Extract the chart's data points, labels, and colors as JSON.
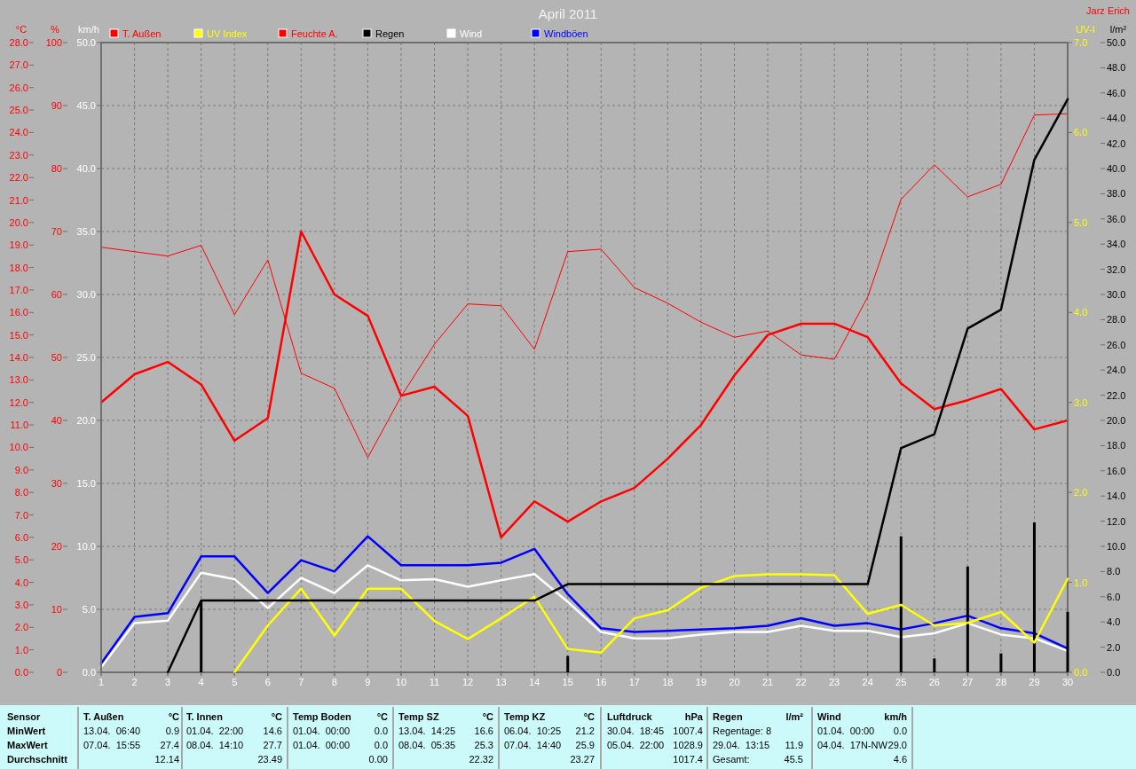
{
  "chart_data": [
    {
      "type": "line",
      "title": "April 2011",
      "x": [
        1,
        2,
        3,
        4,
        5,
        6,
        7,
        8,
        9,
        10,
        11,
        12,
        13,
        14,
        15,
        16,
        17,
        18,
        19,
        20,
        21,
        22,
        23,
        24,
        25,
        26,
        27,
        28,
        29,
        30
      ],
      "xlim": [
        1,
        30
      ],
      "xticks": [
        1,
        2,
        3,
        4,
        5,
        6,
        7,
        8,
        9,
        10,
        11,
        12,
        13,
        14,
        15,
        16,
        17,
        18,
        19,
        20,
        21,
        22,
        23,
        24,
        25,
        26,
        27,
        28,
        29,
        30
      ],
      "ylabel": "°C",
      "ylim": [
        0,
        28
      ],
      "yticks": [
        {
          "value": 0,
          "label": "0.0"
        },
        {
          "value": 1,
          "label": "1.0"
        },
        {
          "value": 2,
          "label": "2.0"
        },
        {
          "value": 3,
          "label": "3.0"
        },
        {
          "value": 4,
          "label": "4.0"
        },
        {
          "value": 5,
          "label": "5.0"
        },
        {
          "value": 6,
          "label": "6.0"
        },
        {
          "value": 7,
          "label": "7.0"
        },
        {
          "value": 8,
          "label": "8.0"
        },
        {
          "value": 9,
          "label": "9.0"
        },
        {
          "value": 10,
          "label": "10.0"
        },
        {
          "value": 11,
          "label": "11.0"
        },
        {
          "value": 12,
          "label": "12.0"
        },
        {
          "value": 13,
          "label": "13.0"
        },
        {
          "value": 14,
          "label": "14.0"
        },
        {
          "value": 15,
          "label": "15.0"
        },
        {
          "value": 16,
          "label": "16.0"
        },
        {
          "value": 17,
          "label": "17.0"
        },
        {
          "value": 18,
          "label": "18.0"
        },
        {
          "value": 19,
          "label": "19.0"
        },
        {
          "value": 20,
          "label": "20.0"
        },
        {
          "value": 21,
          "label": "21.0"
        },
        {
          "value": 22,
          "label": "22.0"
        },
        {
          "value": 23,
          "label": "23.0"
        },
        {
          "value": 24,
          "label": "24.0"
        },
        {
          "value": 25,
          "label": "25.0"
        },
        {
          "value": 26,
          "label": "26.0"
        },
        {
          "value": 27,
          "label": "27.0"
        },
        {
          "value": 28,
          "label": "28.0"
        }
      ],
      "y2label": "%",
      "y2lim": [
        0,
        100
      ],
      "y2ticks": [
        0,
        10,
        20,
        30,
        40,
        50,
        60,
        70,
        80,
        90,
        100
      ],
      "y3label": "km/h",
      "y3lim": [
        0,
        50
      ],
      "y3ticks": [
        {
          "value": 0,
          "label": "0.0"
        },
        {
          "value": 5,
          "label": "5.0"
        },
        {
          "value": 10,
          "label": "10.0"
        },
        {
          "value": 15,
          "label": "15.0"
        },
        {
          "value": 20,
          "label": "20.0"
        },
        {
          "value": 25,
          "label": "25.0"
        },
        {
          "value": 30,
          "label": "30.0"
        },
        {
          "value": 35,
          "label": "35.0"
        },
        {
          "value": 40,
          "label": "40.0"
        },
        {
          "value": 45,
          "label": "45.0"
        },
        {
          "value": 50,
          "label": "50.0"
        }
      ],
      "grid": true,
      "legend": "top",
      "marker": "none",
      "line_style": "solid",
      "series": [
        {
          "name": "T. Außen",
          "color": "#ff0000",
          "values": [
            12.0,
            13.25,
            13.8,
            12.8,
            10.3,
            11.3,
            19.6,
            16.8,
            15.85,
            12.3,
            12.7,
            11.4,
            6.0,
            7.6,
            6.7,
            7.6,
            8.2,
            9.5,
            11.0,
            13.2,
            15.0,
            15.5,
            15.5,
            14.9,
            12.85,
            11.7,
            12.1,
            12.6,
            10.8,
            11.2
          ]
        },
        {
          "name": "Feuchte A.",
          "color": "#ff0000",
          "axis": "y2",
          "values": [
            67.5,
            66.8,
            66.1,
            67.8,
            56.8,
            65.5,
            47.5,
            45.1,
            34.1,
            43.8,
            52.1,
            58.5,
            58.2,
            51.3,
            66.8,
            67.2,
            61.1,
            58.6,
            55.6,
            53.2,
            54.2,
            50.4,
            49.7,
            59.6,
            75.1,
            80.6,
            75.5,
            77.5,
            88.5,
            88.7
          ]
        },
        {
          "name": "Wind",
          "color": "#ffffff",
          "axis": "y3",
          "values": [
            0.4,
            3.9,
            4.1,
            7.9,
            7.4,
            5.1,
            7.5,
            6.3,
            8.5,
            7.3,
            7.4,
            6.8,
            7.3,
            7.8,
            5.6,
            3.2,
            2.7,
            2.7,
            3.0,
            3.2,
            3.2,
            3.7,
            3.3,
            3.3,
            2.8,
            3.1,
            3.9,
            3.0,
            2.7,
            1.7
          ]
        },
        {
          "name": "Windböen",
          "color": "#0000ff",
          "axis": "y3",
          "values": [
            0.7,
            4.4,
            4.7,
            9.2,
            9.2,
            6.3,
            8.9,
            8.0,
            10.8,
            8.5,
            8.5,
            8.5,
            8.7,
            9.8,
            6.2,
            3.5,
            3.2,
            3.3,
            3.4,
            3.5,
            3.7,
            4.3,
            3.7,
            3.9,
            3.4,
            3.9,
            4.5,
            3.5,
            3.1,
            1.9
          ]
        }
      ],
      "annotations": [
        "Jarz Erich",
        "Sensor",
        "MinWert",
        "MaxWert",
        "Durchschnitt",
        "T. Außen",
        "°C",
        "13.04.  06:40",
        "0.9",
        "07.04.  15:55",
        "27.4",
        "12.14",
        "T. Innen",
        "°C",
        "01.04.  22:00",
        "14.6",
        "08.04.  14:10",
        "27.7",
        "23.49",
        "Temp Boden",
        "°C",
        "01.04.  00:00",
        "0.0",
        "01.04.  00:00",
        "0.0",
        "0.00",
        "Temp SZ",
        "°C",
        "13.04.  14:25",
        "16.6",
        "08.04.  05:35",
        "25.3",
        "22.32",
        "Temp KZ",
        "°C",
        "06.04.  10:25",
        "21.2",
        "07.04.  14:40",
        "25.9",
        "23.27",
        "Luftdruck",
        "hPa",
        "30.04.  18:45",
        "1007.4",
        "05.04.  22:00",
        "1028.9",
        "1017.4",
        "Regen",
        "l/m²",
        "Regentage: 8",
        "29.04.  13:15",
        "11.9",
        "Gesamt:",
        "45.5",
        "Wind",
        "km/h",
        "01.04.  00:00",
        "0.0",
        "04.04.  17N-NW",
        "29.0",
        "4.6"
      ]
    },
    {
      "type": "line",
      "xlim": [
        1,
        30
      ],
      "xticks": [
        1,
        2,
        3,
        4,
        5,
        6,
        7,
        8,
        9,
        10,
        11,
        12,
        13,
        14,
        15,
        16,
        17,
        18,
        19,
        20,
        21,
        22,
        23,
        24,
        25,
        26,
        27,
        28,
        29,
        30
      ],
      "tick_labels": "y",
      "ylabel": "UV-I",
      "ylim": [
        0,
        7
      ],
      "yticks": [
        {
          "value": 0,
          "label": "0.0"
        },
        {
          "value": 1,
          "label": "1.0"
        },
        {
          "value": 2,
          "label": "2.0"
        },
        {
          "value": 3,
          "label": "3.0"
        },
        {
          "value": 4,
          "label": "4.0"
        },
        {
          "value": 5,
          "label": "5.0"
        },
        {
          "value": 6,
          "label": "6.0"
        },
        {
          "value": 7,
          "label": "7.0"
        }
      ],
      "y2label": "l/m²",
      "y2lim": [
        0,
        50
      ],
      "y2ticks": [
        {
          "value": 0,
          "label": "0.0"
        },
        {
          "value": 2,
          "label": "2.0"
        },
        {
          "value": 4,
          "label": "4.0"
        },
        {
          "value": 6,
          "label": "6.0"
        },
        {
          "value": 8,
          "label": "8.0"
        },
        {
          "value": 10,
          "label": "10.0"
        },
        {
          "value": 12,
          "label": "12.0"
        },
        {
          "value": 14,
          "label": "14.0"
        },
        {
          "value": 16,
          "label": "16.0"
        },
        {
          "value": 18,
          "label": "18.0"
        },
        {
          "value": 20,
          "label": "20.0"
        },
        {
          "value": 22,
          "label": "22.0"
        },
        {
          "value": 24,
          "label": "24.0"
        },
        {
          "value": 26,
          "label": "26.0"
        },
        {
          "value": 28,
          "label": "28.0"
        },
        {
          "value": 30,
          "label": "30.0"
        },
        {
          "value": 32,
          "label": "32.0"
        },
        {
          "value": 34,
          "label": "34.0"
        },
        {
          "value": 36,
          "label": "36.0"
        },
        {
          "value": 38,
          "label": "38.0"
        },
        {
          "value": 40,
          "label": "40.0"
        },
        {
          "value": 42,
          "label": "42.0"
        },
        {
          "value": 44,
          "label": "44.0"
        },
        {
          "value": 46,
          "label": "46.0"
        },
        {
          "value": 48,
          "label": "48.0"
        },
        {
          "value": 50,
          "label": "50.0"
        }
      ],
      "legend": "top",
      "marker": "none",
      "line_style": "solid",
      "series": [
        {
          "type": "bar",
          "color": "#000000",
          "axis": "y2",
          "x": [
            4,
            15,
            25,
            26,
            27,
            28,
            29,
            30
          ],
          "values": [
            5.7,
            1.3,
            10.8,
            1.1,
            8.4,
            1.5,
            11.9,
            4.8
          ]
        },
        {
          "name": "UV Index",
          "color": "#ffff00",
          "x": [
            5,
            6,
            7,
            8,
            9,
            10,
            11,
            12,
            13,
            14,
            15,
            16,
            17,
            18,
            19,
            20,
            21,
            22,
            23,
            24,
            25,
            26,
            27,
            28,
            29,
            30
          ],
          "values": [
            0,
            0.52,
            0.93,
            0.41,
            0.93,
            0.93,
            0.57,
            0.37,
            0.6,
            0.84,
            0.26,
            0.22,
            0.6,
            0.69,
            0.94,
            1.07,
            1.09,
            1.09,
            1.08,
            0.65,
            0.75,
            0.52,
            0.55,
            0.67,
            0.33,
            1.04
          ]
        },
        {
          "name": "Regen",
          "color": "#000000",
          "axis": "y2",
          "x": [
            3,
            4,
            5,
            6,
            7,
            8,
            9,
            10,
            11,
            12,
            13,
            14,
            15,
            16,
            17,
            18,
            19,
            20,
            21,
            22,
            23,
            24,
            25,
            26,
            27,
            28,
            29,
            30
          ],
          "values": [
            0,
            5.7,
            5.7,
            5.7,
            5.7,
            5.7,
            5.7,
            5.7,
            5.7,
            5.7,
            5.7,
            5.7,
            7.0,
            7.0,
            7.0,
            7.0,
            7.0,
            7.0,
            7.0,
            7.0,
            7.0,
            7.0,
            17.8,
            18.9,
            27.3,
            28.8,
            40.7,
            45.5
          ]
        }
      ]
    }
  ]
}
